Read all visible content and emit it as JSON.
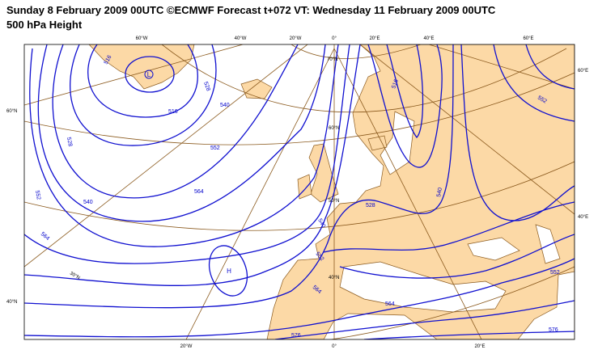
{
  "header": {
    "title": "Sunday 8 February 2009 00UTC ©ECMWF Forecast t+072 VT: Wednesday 11 February 2009 00UTC",
    "subtitle": "500 hPa Height"
  },
  "map": {
    "lon_labels_top": [
      "60°W",
      "40°W",
      "20°W",
      "0°",
      "20°E",
      "40°E",
      "60°E"
    ],
    "lon_labels_bottom": [
      "20°W",
      "0°",
      "20°E"
    ],
    "lat_labels_left": [
      "60°N",
      "40°N"
    ],
    "lat_labels_right": [
      "60°E",
      "40°E"
    ],
    "lat_labels_inner": [
      "70°N",
      "60°N",
      "50°N",
      "40°N",
      "30°N"
    ],
    "contour_labels": [
      "516",
      "528",
      "516",
      "540",
      "552",
      "564",
      "528",
      "540",
      "552",
      "564",
      "576",
      "564",
      "552",
      "540",
      "528",
      "540",
      "516",
      "552",
      "552",
      "564",
      "576"
    ],
    "centers": [
      "L",
      "H"
    ]
  }
}
